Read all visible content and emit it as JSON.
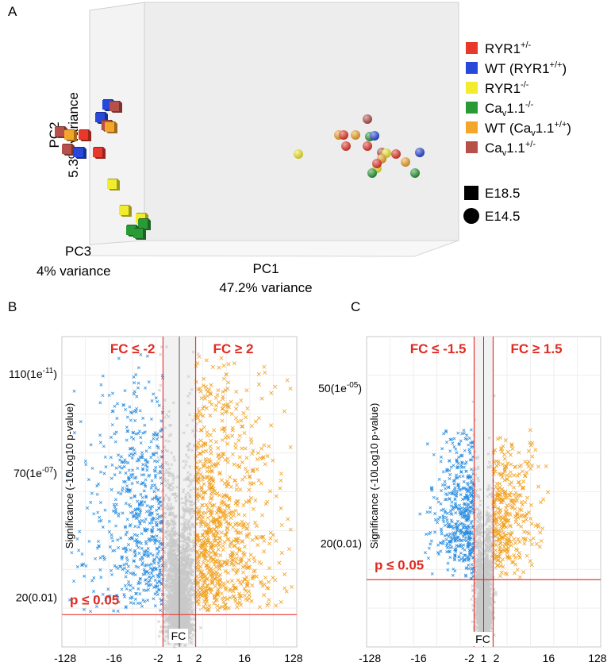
{
  "panels": {
    "A": {
      "label": "A"
    },
    "B": {
      "label": "B"
    },
    "C": {
      "label": "C"
    }
  },
  "colors": {
    "ryr1_het": "#e8382c",
    "wt_ryr1": "#2748d8",
    "ryr1_ko": "#f2ec2e",
    "cav_ko": "#2a9a37",
    "wt_cav": "#f4a62a",
    "cav_het": "#b8504a",
    "blue_x": "#2b8ee0",
    "orange_x": "#f0a020",
    "gray_x": "#c9c9c9",
    "threshold": "#e53935",
    "label_red": "#e02a22"
  },
  "chart_data": [
    {
      "id": "A",
      "type": "scatter",
      "title": "",
      "axes": {
        "pc1": {
          "label": "PC1",
          "variance": "47.2% variance"
        },
        "pc2": {
          "label": "PC2",
          "variance": "5.3% variance"
        },
        "pc3": {
          "label": "PC3",
          "variance": "4% variance"
        }
      },
      "legend": {
        "placement": "right",
        "groups": [
          {
            "key": "ryr1_het",
            "text": "RYR1",
            "sup": "+/-",
            "sub": "",
            "rest": ""
          },
          {
            "key": "wt_ryr1",
            "text": "WT (RYR1",
            "sup": "+/+",
            "sub": "",
            "rest": ")"
          },
          {
            "key": "ryr1_ko",
            "text": "RYR1",
            "sup": "-/-",
            "sub": "",
            "rest": ""
          },
          {
            "key": "cav_ko",
            "text": "Ca",
            "sub": "v",
            "mid": "1.1",
            "sup": "-/-",
            "rest": ""
          },
          {
            "key": "wt_cav",
            "text": "WT (Ca",
            "sub": "v",
            "mid": "1.1",
            "sup": "+/+",
            "rest": ")"
          },
          {
            "key": "cav_het",
            "text": "Ca",
            "sub": "v",
            "mid": "1.1",
            "sup": "+/-",
            "rest": ""
          }
        ],
        "shapes": [
          {
            "shape": "square",
            "label": "E18.5"
          },
          {
            "shape": "circle",
            "label": "E14.5"
          }
        ]
      },
      "points": [
        {
          "stage": "E18.5",
          "group": "wt_ryr1",
          "pc1": -3.4,
          "pc2": 0.78
        },
        {
          "stage": "E18.5",
          "group": "cav_het",
          "pc1": -3.25,
          "pc2": 0.76
        },
        {
          "stage": "E18.5",
          "group": "wt_ryr1",
          "pc1": -3.55,
          "pc2": 0.62
        },
        {
          "stage": "E18.5",
          "group": "cav_het",
          "pc1": -3.42,
          "pc2": 0.52
        },
        {
          "stage": "E18.5",
          "group": "wt_cav",
          "pc1": -3.35,
          "pc2": 0.5
        },
        {
          "stage": "E18.5",
          "group": "cav_het",
          "pc1": -4.4,
          "pc2": 0.44
        },
        {
          "stage": "E18.5",
          "group": "wt_cav",
          "pc1": -4.2,
          "pc2": 0.4
        },
        {
          "stage": "E18.5",
          "group": "ryr1_het",
          "pc1": -3.9,
          "pc2": 0.4
        },
        {
          "stage": "E18.5",
          "group": "cav_het",
          "pc1": -4.25,
          "pc2": 0.22
        },
        {
          "stage": "E18.5",
          "group": "wt_ryr1",
          "pc1": -4.0,
          "pc2": 0.18
        },
        {
          "stage": "E18.5",
          "group": "ryr1_het",
          "pc1": -3.6,
          "pc2": 0.18
        },
        {
          "stage": "E18.5",
          "group": "ryr1_ko",
          "pc1": -3.3,
          "pc2": -0.22
        },
        {
          "stage": "E18.5",
          "group": "ryr1_ko",
          "pc1": -3.05,
          "pc2": -0.55
        },
        {
          "stage": "E18.5",
          "group": "ryr1_ko",
          "pc1": -2.7,
          "pc2": -0.65
        },
        {
          "stage": "E18.5",
          "group": "cav_ko",
          "pc1": -2.65,
          "pc2": -0.72
        },
        {
          "stage": "E18.5",
          "group": "cav_ko",
          "pc1": -2.9,
          "pc2": -0.8
        },
        {
          "stage": "E18.5",
          "group": "cav_ko",
          "pc1": -2.75,
          "pc2": -0.84
        },
        {
          "stage": "E14.5",
          "group": "cav_het",
          "pc1": 2.05,
          "pc2": 0.6
        },
        {
          "stage": "E14.5",
          "group": "wt_cav",
          "pc1": 1.45,
          "pc2": 0.4
        },
        {
          "stage": "E14.5",
          "group": "ryr1_het",
          "pc1": 1.55,
          "pc2": 0.4
        },
        {
          "stage": "E14.5",
          "group": "wt_cav",
          "pc1": 1.8,
          "pc2": 0.4
        },
        {
          "stage": "E14.5",
          "group": "cav_ko",
          "pc1": 2.1,
          "pc2": 0.38
        },
        {
          "stage": "E14.5",
          "group": "wt_ryr1",
          "pc1": 2.2,
          "pc2": 0.39
        },
        {
          "stage": "E14.5",
          "group": "ryr1_het",
          "pc1": 1.6,
          "pc2": 0.26
        },
        {
          "stage": "E14.5",
          "group": "ryr1_het",
          "pc1": 2.05,
          "pc2": 0.26
        },
        {
          "stage": "E14.5",
          "group": "ryr1_ko",
          "pc1": 0.6,
          "pc2": 0.16
        },
        {
          "stage": "E14.5",
          "group": "cav_het",
          "pc1": 2.35,
          "pc2": 0.18
        },
        {
          "stage": "E14.5",
          "group": "ryr1_ko",
          "pc1": 2.45,
          "pc2": 0.17
        },
        {
          "stage": "E14.5",
          "group": "ryr1_het",
          "pc1": 2.65,
          "pc2": 0.16
        },
        {
          "stage": "E14.5",
          "group": "wt_ryr1",
          "pc1": 3.15,
          "pc2": 0.18
        },
        {
          "stage": "E14.5",
          "group": "wt_cav",
          "pc1": 2.35,
          "pc2": 0.1
        },
        {
          "stage": "E14.5",
          "group": "wt_cav",
          "pc1": 2.85,
          "pc2": 0.06
        },
        {
          "stage": "E14.5",
          "group": "ryr1_ko",
          "pc1": 2.25,
          "pc2": -0.02
        },
        {
          "stage": "E14.5",
          "group": "ryr1_het",
          "pc1": 2.25,
          "pc2": 0.04
        },
        {
          "stage": "E14.5",
          "group": "cav_ko",
          "pc1": 2.15,
          "pc2": -0.08
        },
        {
          "stage": "E14.5",
          "group": "cav_ko",
          "pc1": 3.05,
          "pc2": -0.08
        }
      ]
    },
    {
      "id": "B",
      "type": "scatter",
      "title": "",
      "xlabel": "FC",
      "ylabel": "Significance (-10Log10 p-value)",
      "x_scale": "log2",
      "x_ticks": [
        -128,
        -16,
        -2,
        1,
        2,
        16,
        128
      ],
      "x_tick_labels": [
        "-128",
        "-16",
        "-2",
        "1",
        "2",
        "16",
        "128"
      ],
      "y_ticks": [
        {
          "value": 20,
          "label": "20(0.01)"
        },
        {
          "value": 70,
          "label": "70(1e",
          "sup": "-07",
          "close": ")"
        },
        {
          "value": 110,
          "label": "110(1e",
          "sup": "-11",
          "close": ")"
        }
      ],
      "ylim": [
        0,
        125
      ],
      "thresholds": {
        "fc_low": -2,
        "fc_high": 2,
        "p_value": 0.05,
        "significance": 13
      },
      "annotations": {
        "left": "FC ≤ -2",
        "right": "FC ≥ 2",
        "pvalue": "p ≤ 0.05"
      },
      "distribution": {
        "n_gray": 2600,
        "n_blue": 650,
        "n_orange": 900,
        "max_log2fc": 7.0,
        "max_sig": 118
      }
    },
    {
      "id": "C",
      "type": "scatter",
      "title": "",
      "xlabel": "FC",
      "ylabel": "Significance (-10Log10 p-value)",
      "x_scale": "log2",
      "x_ticks": [
        -128,
        -16,
        -2,
        1,
        2,
        16,
        128
      ],
      "x_tick_labels": [
        "-128",
        "-16",
        "-2",
        "1",
        "2",
        "16",
        "128"
      ],
      "y_ticks": [
        {
          "value": 20,
          "label": "20(0.01)"
        },
        {
          "value": 50,
          "label": "50(1e",
          "sup": "-05",
          "close": ")"
        }
      ],
      "ylim": [
        0,
        60
      ],
      "thresholds": {
        "fc_low": -1.5,
        "fc_high": 1.5,
        "p_value": 0.05,
        "significance": 13
      },
      "annotations": {
        "left": "FC ≤ -1.5",
        "right": "FC ≥ 1.5",
        "pvalue": "p ≤ 0.05"
      },
      "distribution": {
        "n_gray": 1800,
        "n_blue": 520,
        "n_orange": 360,
        "max_log2fc": 4.0,
        "max_sig": 42
      }
    }
  ]
}
